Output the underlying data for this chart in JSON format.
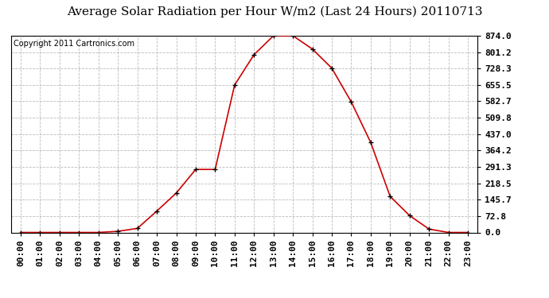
{
  "title": "Average Solar Radiation per Hour W/m2 (Last 24 Hours) 20110713",
  "copyright": "Copyright 2011 Cartronics.com",
  "hours": [
    "00:00",
    "01:00",
    "02:00",
    "03:00",
    "04:00",
    "05:00",
    "06:00",
    "07:00",
    "08:00",
    "09:00",
    "10:00",
    "11:00",
    "12:00",
    "13:00",
    "14:00",
    "15:00",
    "16:00",
    "17:00",
    "18:00",
    "19:00",
    "20:00",
    "21:00",
    "22:00",
    "23:00"
  ],
  "values": [
    0,
    0,
    0,
    0,
    0,
    5,
    18,
    95,
    175,
    280,
    280,
    655,
    790,
    874,
    874,
    815,
    730,
    580,
    400,
    160,
    75,
    15,
    0,
    0
  ],
  "y_ticks": [
    0.0,
    72.8,
    145.7,
    218.5,
    291.3,
    364.2,
    437.0,
    509.8,
    582.7,
    655.5,
    728.3,
    801.2,
    874.0
  ],
  "line_color": "#cc0000",
  "marker": "+",
  "marker_color": "#000000",
  "bg_color": "#ffffff",
  "plot_bg_color": "#ffffff",
  "grid_color": "#bbbbbb",
  "title_fontsize": 11,
  "copyright_fontsize": 7,
  "tick_label_fontsize": 8,
  "ylim": [
    0,
    874.0
  ],
  "grid_linestyle": "--"
}
